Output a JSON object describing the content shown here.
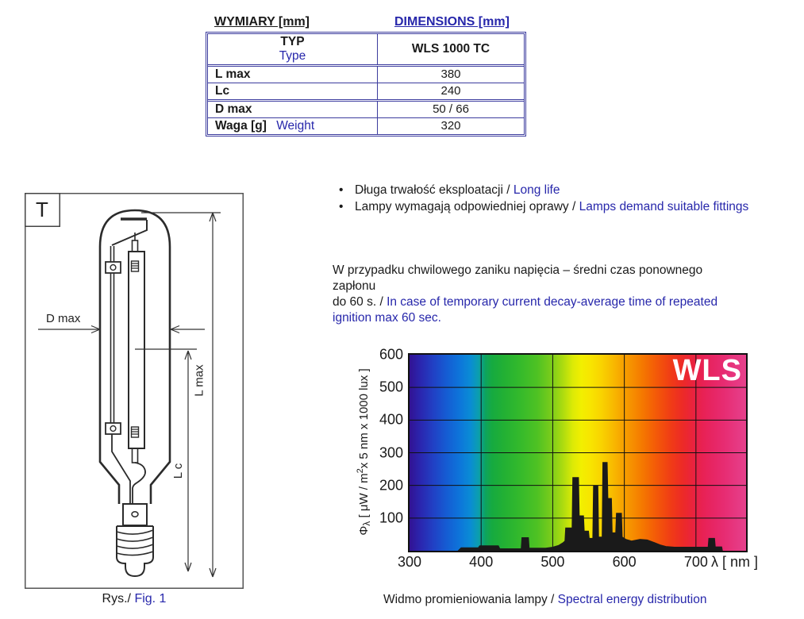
{
  "colors": {
    "accent_blue": "#2727ab",
    "table_border": "#3c3c9e",
    "text_black": "#1a1a1a",
    "chart_logo_color": "#ffffff",
    "spectrum_fill": "#1a1a1a"
  },
  "dimensions_table": {
    "title_pl": "WYMIARY [mm]",
    "title_en": "DIMENSIONS [mm]",
    "header": {
      "type_pl": "TYP",
      "type_en": "Type",
      "model": "WLS 1000 TC"
    },
    "rows": [
      {
        "label_pl": "L max",
        "label_en": "",
        "value": "380"
      },
      {
        "label_pl": "Lc",
        "label_en": "",
        "value": "240"
      },
      {
        "label_pl": "D max",
        "label_en": "",
        "value": "50 / 66"
      },
      {
        "label_pl": "Waga [g]",
        "label_en": "Weight",
        "value": "320"
      }
    ]
  },
  "figure": {
    "t_label": "T",
    "d_max_label": "D max",
    "l_max_label": "L max",
    "l_c_label": "L c",
    "caption_pl": "Rys./",
    "caption_en": "Fig. 1"
  },
  "bullets": [
    {
      "pl": "Długa trwałość eksploatacji / ",
      "en": "Long life"
    },
    {
      "pl": "Lampy wymagają odpowiedniej oprawy / ",
      "en": "Lamps demand suitable fittings"
    }
  ],
  "paragraph": {
    "line1": "W przypadku chwilowego zaniku napięcia – średni czas ponownego",
    "line2": "zapłonu",
    "line3_black": "do 60 s. / ",
    "line3_blue": "In case of temporary current decay-average time of repeated",
    "line4_blue": "ignition max 60 sec."
  },
  "chart_caption": {
    "pl": "Widmo promieniowania lampy / ",
    "en": "Spectral energy distribution"
  },
  "chart_data": {
    "type": "area",
    "title": "WLS",
    "xlabel": "λ [ nm ]",
    "ylabel": "Φλ [ μW / m2 x 5 nm  x 1000 lux ]",
    "ylabel_parts": {
      "sym": "Φ",
      "sym_sub": "λ",
      "unit_pre": " [ μW / m",
      "sup": "2",
      "unit_post": "x 5 nm  x 1000 lux ]"
    },
    "xlim": [
      300,
      770
    ],
    "ylim": [
      0,
      600
    ],
    "xticks": [
      300,
      400,
      500,
      600,
      700
    ],
    "yticks": [
      100,
      200,
      300,
      400,
      500,
      600
    ],
    "grid_x": [
      400,
      500,
      600,
      700
    ],
    "grid_y": [
      100,
      200,
      300,
      400,
      500
    ],
    "grid": true,
    "legend": "none",
    "background": "visible-light spectral gradient 300-770 nm",
    "series_color": "#1a1a1a",
    "points": [
      [
        368,
        0
      ],
      [
        372,
        9
      ],
      [
        396,
        9
      ],
      [
        398,
        15
      ],
      [
        424,
        15
      ],
      [
        426,
        6
      ],
      [
        456,
        6
      ],
      [
        457,
        40
      ],
      [
        466,
        40
      ],
      [
        467,
        8
      ],
      [
        490,
        8
      ],
      [
        500,
        11
      ],
      [
        508,
        16
      ],
      [
        514,
        24
      ],
      [
        517,
        30
      ],
      [
        518,
        70
      ],
      [
        527,
        70
      ],
      [
        528,
        224
      ],
      [
        536,
        224
      ],
      [
        537,
        107
      ],
      [
        543,
        107
      ],
      [
        544,
        60
      ],
      [
        550,
        60
      ],
      [
        551,
        38
      ],
      [
        556,
        38
      ],
      [
        557,
        198
      ],
      [
        563,
        198
      ],
      [
        564,
        42
      ],
      [
        569,
        42
      ],
      [
        570,
        270
      ],
      [
        576,
        270
      ],
      [
        577,
        160
      ],
      [
        582,
        160
      ],
      [
        583,
        55
      ],
      [
        588,
        55
      ],
      [
        589,
        115
      ],
      [
        596,
        115
      ],
      [
        597,
        42
      ],
      [
        602,
        35
      ],
      [
        610,
        30
      ],
      [
        622,
        35
      ],
      [
        632,
        33
      ],
      [
        642,
        25
      ],
      [
        650,
        18
      ],
      [
        658,
        13
      ],
      [
        670,
        11
      ],
      [
        690,
        11
      ],
      [
        717,
        11
      ],
      [
        718,
        38
      ],
      [
        726,
        38
      ],
      [
        727,
        12
      ],
      [
        736,
        12
      ],
      [
        737,
        0
      ]
    ]
  }
}
